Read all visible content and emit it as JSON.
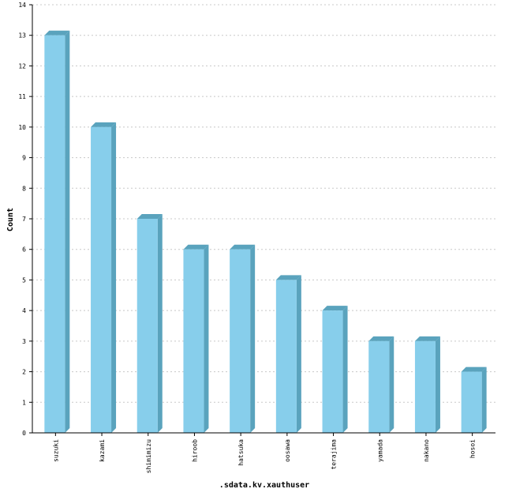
{
  "chart_data": {
    "type": "bar",
    "title": "",
    "xlabel": ".sdata.kv.xauthuser",
    "ylabel": "Count",
    "categories": [
      "suzuki",
      "kazami",
      "shimimizu",
      "hiroob",
      "hatsuka",
      "oosawa",
      "terajima",
      "yamada",
      "nakano",
      "hosoi"
    ],
    "values": [
      13,
      10,
      7,
      6,
      6,
      5,
      4,
      3,
      3,
      2
    ],
    "ylim": [
      0,
      14
    ],
    "yticks": [
      "0",
      "1",
      "2",
      "3",
      "4",
      "5",
      "6",
      "7",
      "8",
      "9",
      "10",
      "11",
      "12",
      "13",
      "14"
    ],
    "grid": true,
    "legend": "none",
    "colors": {
      "bar_front": "#87ceeb",
      "bar_side": "#5aa3bd",
      "bar_top": "#5aa3bd",
      "grid": "#c8c8c8",
      "axis": "#000000"
    }
  }
}
